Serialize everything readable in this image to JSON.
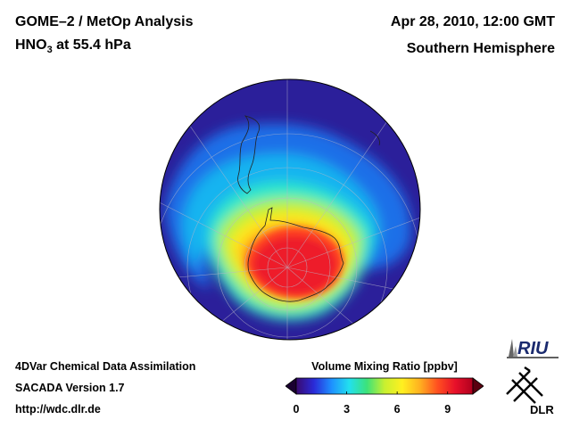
{
  "header": {
    "title_part1": "GOME–2 / MetOp Analysis",
    "species_main": "HNO",
    "species_sub": "3",
    "level_text": " at 55.4 hPa",
    "date": "Apr 28, 2010, 12:00 GMT",
    "region": "Southern Hemisphere"
  },
  "footer": {
    "line1": "4DVar Chemical Data Assimilation",
    "line2": "SACADA Version 1.7",
    "line3": "http://wdc.dlr.de"
  },
  "colorbar": {
    "title": "Volume Mixing Ratio [ppbv]",
    "ticks": [
      "0",
      "3",
      "6",
      "9"
    ],
    "tick_values": [
      0,
      3,
      6,
      9
    ],
    "min": 0,
    "max": 10.5,
    "colors": [
      "#3a0a6e",
      "#2a2ad8",
      "#1e90ff",
      "#22e0ee",
      "#3ce27a",
      "#c8f030",
      "#fff020",
      "#ffb020",
      "#ff5020",
      "#e8102a",
      "#b0001e"
    ]
  },
  "logos": {
    "riu": "RIU",
    "dlr": "DLR"
  },
  "map": {
    "projection": "orthographic-south-polar",
    "ocean_background_color": "#2b1f9a",
    "maximum_region": "Antarctica",
    "maximum_color": "#ee1c2a"
  }
}
